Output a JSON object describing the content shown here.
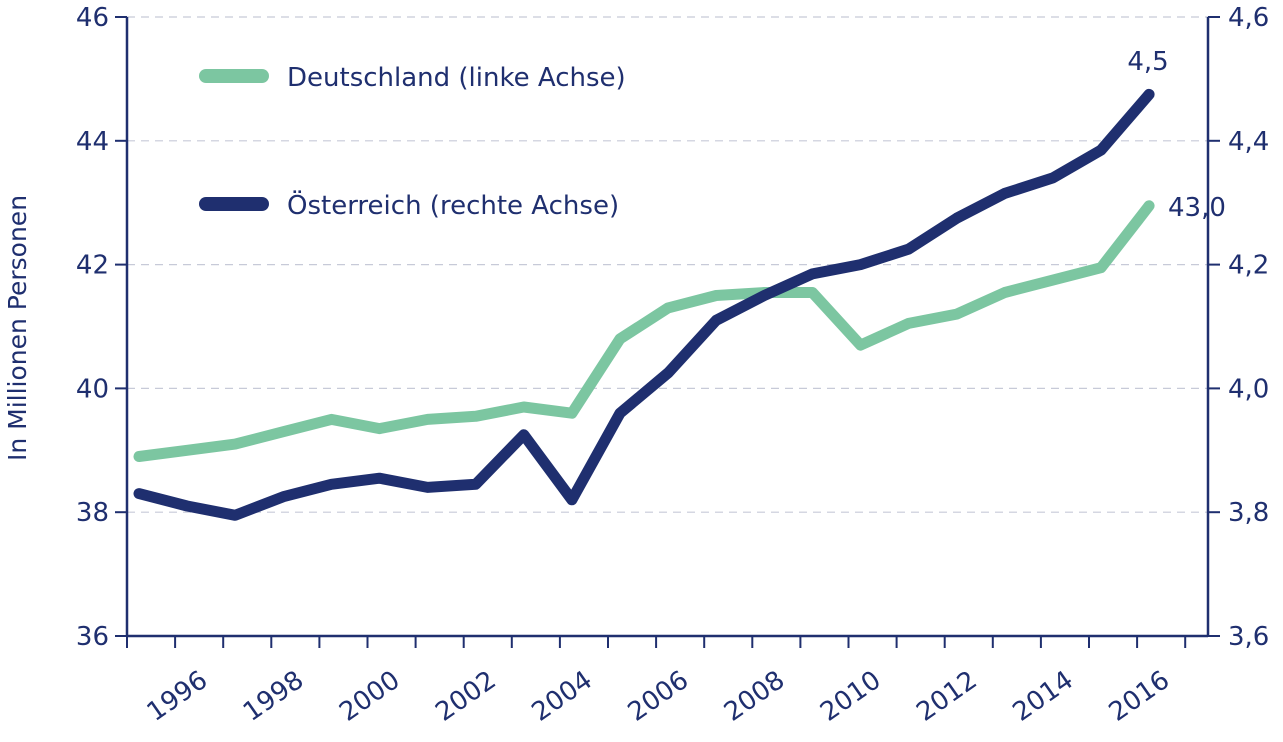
{
  "colors": {
    "axis": "#1f2f6f",
    "grid": "#c7cad8",
    "deutschland": "#7cc6a1",
    "oesterreich": "#1f2f6f"
  },
  "chart_data": {
    "type": "line",
    "ylabel": "In Millionen Personen",
    "y_left": {
      "ylim": [
        36,
        46
      ],
      "ticks": [
        "36",
        "38",
        "40",
        "42",
        "44",
        "46"
      ]
    },
    "y_right": {
      "ylim": [
        3.6,
        4.6
      ],
      "ticks": [
        "3,6",
        "3,8",
        "4,0",
        "4,2",
        "4,4",
        "4,6"
      ]
    },
    "x": [
      1995,
      1996,
      1997,
      1998,
      1999,
      2000,
      2001,
      2002,
      2003,
      2004,
      2005,
      2006,
      2007,
      2008,
      2009,
      2010,
      2011,
      2012,
      2013,
      2014,
      2015,
      2016
    ],
    "x_tick_labels": [
      "1996",
      "1998",
      "2000",
      "2002",
      "2004",
      "2006",
      "2008",
      "2010",
      "2012",
      "2014",
      "2016"
    ],
    "grid": "horizontal dashed",
    "legend_position": "top-left",
    "series": [
      {
        "name": "Deutschland (linke Achse)",
        "axis": "left",
        "values": [
          38.9,
          39.0,
          39.1,
          39.3,
          39.5,
          39.35,
          39.5,
          39.55,
          39.7,
          39.6,
          40.8,
          41.3,
          41.5,
          41.55,
          41.55,
          40.7,
          41.05,
          41.2,
          41.55,
          41.75,
          41.95,
          42.95
        ],
        "end_label": "43,0"
      },
      {
        "name": "Österreich (rechte Achse)",
        "axis": "right",
        "values": [
          3.83,
          3.81,
          3.795,
          3.825,
          3.845,
          3.855,
          3.84,
          3.845,
          3.925,
          3.82,
          3.96,
          4.025,
          4.11,
          4.15,
          4.185,
          4.2,
          4.225,
          4.275,
          4.315,
          4.34,
          4.385,
          4.475
        ],
        "end_label": "4,5"
      }
    ]
  }
}
